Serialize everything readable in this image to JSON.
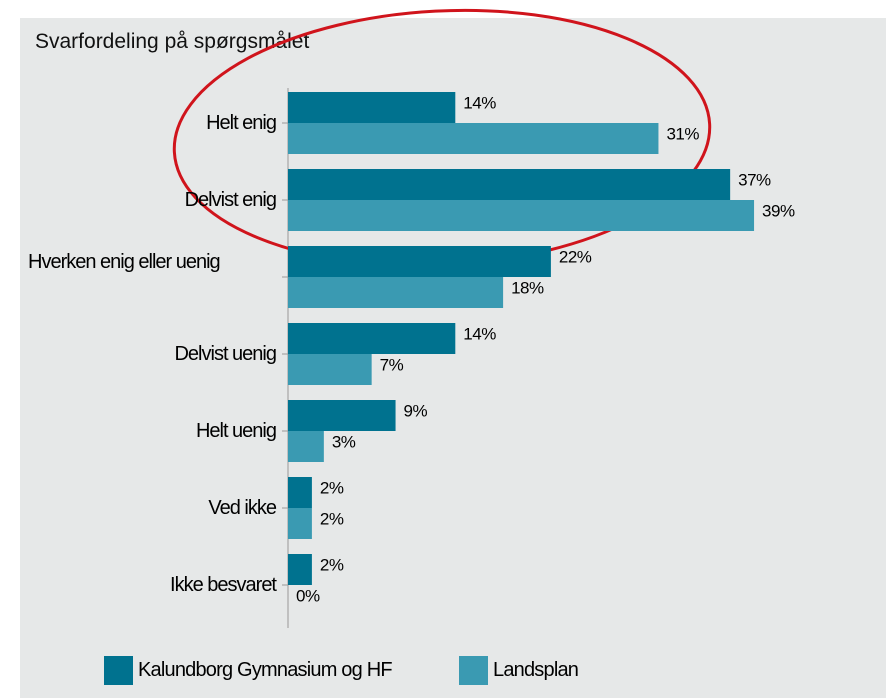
{
  "chart_data": {
    "type": "bar",
    "orientation": "horizontal",
    "title": "Svarfordeling på spørgsmålet",
    "categories": [
      "Helt enig",
      "Delvist enig",
      "Hverken enig eller uenig",
      "Delvist uenig",
      "Helt uenig",
      "Ved ikke",
      "Ikke besvaret"
    ],
    "series": [
      {
        "name": "Kalundborg Gymnasium og HF",
        "color": "#00728f",
        "values": [
          14,
          37,
          22,
          14,
          9,
          2,
          2
        ],
        "value_labels": [
          "14%",
          "37%",
          "22%",
          "14%",
          "9%",
          "2%",
          "2%"
        ]
      },
      {
        "name": "Landsplan",
        "color": "#3a9ab2",
        "values": [
          31,
          39,
          18,
          7,
          3,
          2,
          0
        ],
        "value_labels": [
          "31%",
          "39%",
          "18%",
          "7%",
          "3%",
          "2%",
          "0%"
        ]
      }
    ]
  }
}
